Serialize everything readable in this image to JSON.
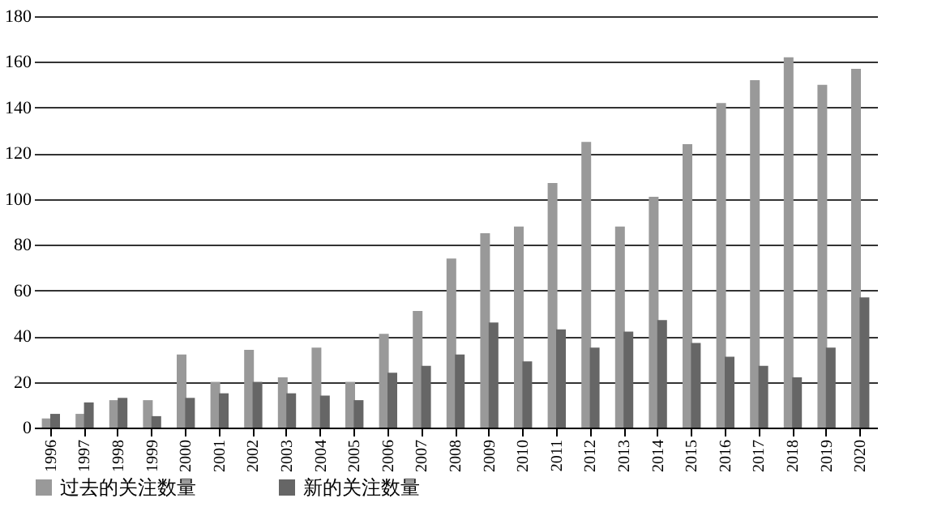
{
  "chart_data": {
    "type": "bar",
    "categories": [
      "1996",
      "1997",
      "1998",
      "1999",
      "2000",
      "2001",
      "2002",
      "2003",
      "2004",
      "2005",
      "2006",
      "2007",
      "2008",
      "2009",
      "2010",
      "2011",
      "2012",
      "2013",
      "2014",
      "2015",
      "2016",
      "2017",
      "2018",
      "2019",
      "2020"
    ],
    "series": [
      {
        "name": "过去的关注数量",
        "color": "#999999",
        "values": [
          4,
          6,
          12,
          12,
          32,
          20,
          34,
          22,
          35,
          20,
          41,
          51,
          74,
          85,
          88,
          107,
          125,
          88,
          101,
          124,
          142,
          152,
          162,
          150,
          157
        ]
      },
      {
        "name": "新的关注数量",
        "color": "#666666",
        "values": [
          6,
          11,
          13,
          5,
          13,
          15,
          20,
          15,
          14,
          12,
          24,
          27,
          32,
          46,
          29,
          43,
          35,
          42,
          47,
          37,
          31,
          27,
          22,
          35,
          57
        ]
      }
    ],
    "ylim": [
      0,
      180
    ],
    "yticks": [
      0,
      20,
      40,
      60,
      80,
      100,
      120,
      140,
      160,
      180
    ],
    "grid": "y",
    "legend": "bottom"
  }
}
